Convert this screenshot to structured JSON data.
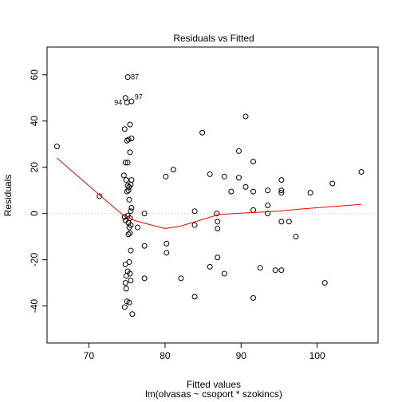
{
  "chart_data": {
    "type": "scatter",
    "title": "Residuals vs Fitted",
    "xlabel": "Fitted values",
    "subtitle": "lm(olvasas ~ csoport * szokincs)",
    "ylabel": "Residuals",
    "xlim": [
      64.5,
      108
    ],
    "ylim": [
      -56,
      72
    ],
    "x_ticks": [
      70,
      80,
      90,
      100
    ],
    "y_ticks": [
      -40,
      -20,
      0,
      20,
      40,
      60
    ],
    "grid": false,
    "zero_line": 0,
    "colors": {
      "points": "#000000",
      "smooth": "#ff0000",
      "zero_line": "#bebebe"
    },
    "points": [
      {
        "x": 65.8,
        "y": 29
      },
      {
        "x": 71.4,
        "y": 7.5
      },
      {
        "x": 74.6,
        "y": 16.5
      },
      {
        "x": 74.7,
        "y": 36.5
      },
      {
        "x": 74.7,
        "y": -1.5
      },
      {
        "x": 74.7,
        "y": -40.5
      },
      {
        "x": 74.8,
        "y": 50
      },
      {
        "x": 74.8,
        "y": 22
      },
      {
        "x": 74.8,
        "y": -3
      },
      {
        "x": 74.8,
        "y": -22
      },
      {
        "x": 74.8,
        "y": -30
      },
      {
        "x": 74.9,
        "y": 14.5
      },
      {
        "x": 74.9,
        "y": -27
      },
      {
        "x": 74.9,
        "y": -32.5
      },
      {
        "x": 75.0,
        "y": 48
      },
      {
        "x": 75.0,
        "y": 31.5
      },
      {
        "x": 75.0,
        "y": 9.5
      },
      {
        "x": 75.0,
        "y": -38
      },
      {
        "x": 75.1,
        "y": 59
      },
      {
        "x": 75.1,
        "y": 22
      },
      {
        "x": 75.1,
        "y": 12
      },
      {
        "x": 75.1,
        "y": -1
      },
      {
        "x": 75.1,
        "y": -25
      },
      {
        "x": 75.2,
        "y": 32
      },
      {
        "x": 75.2,
        "y": 10
      },
      {
        "x": 75.2,
        "y": -4
      },
      {
        "x": 75.2,
        "y": -9
      },
      {
        "x": 75.3,
        "y": 11.5
      },
      {
        "x": 75.3,
        "y": 6
      },
      {
        "x": 75.3,
        "y": -6
      },
      {
        "x": 75.3,
        "y": -21
      },
      {
        "x": 75.3,
        "y": -38.5
      },
      {
        "x": 75.4,
        "y": 38.5
      },
      {
        "x": 75.4,
        "y": 26.5
      },
      {
        "x": 75.4,
        "y": -2
      },
      {
        "x": 75.4,
        "y": -8.5
      },
      {
        "x": 75.4,
        "y": -26
      },
      {
        "x": 75.5,
        "y": 12.5
      },
      {
        "x": 75.5,
        "y": 1
      },
      {
        "x": 75.5,
        "y": -5
      },
      {
        "x": 75.5,
        "y": -16
      },
      {
        "x": 75.5,
        "y": -29
      },
      {
        "x": 75.6,
        "y": 48.5
      },
      {
        "x": 75.6,
        "y": 32.5
      },
      {
        "x": 75.6,
        "y": 14.5
      },
      {
        "x": 75.6,
        "y": 2.5
      },
      {
        "x": 75.7,
        "y": -43.5
      },
      {
        "x": 76.4,
        "y": -6
      },
      {
        "x": 77.3,
        "y": 0
      },
      {
        "x": 77.3,
        "y": -14
      },
      {
        "x": 77.3,
        "y": -28
      },
      {
        "x": 80.1,
        "y": 16
      },
      {
        "x": 80.2,
        "y": -13
      },
      {
        "x": 80.2,
        "y": -17
      },
      {
        "x": 81.1,
        "y": 19
      },
      {
        "x": 82.1,
        "y": -28
      },
      {
        "x": 83.9,
        "y": 1
      },
      {
        "x": 83.9,
        "y": -5
      },
      {
        "x": 83.9,
        "y": -36
      },
      {
        "x": 84.9,
        "y": 35
      },
      {
        "x": 85.9,
        "y": 17
      },
      {
        "x": 85.9,
        "y": -23
      },
      {
        "x": 86.8,
        "y": 0
      },
      {
        "x": 86.9,
        "y": -3.5
      },
      {
        "x": 86.9,
        "y": -6.5
      },
      {
        "x": 86.9,
        "y": -19
      },
      {
        "x": 87.8,
        "y": 16
      },
      {
        "x": 87.8,
        "y": -26
      },
      {
        "x": 88.7,
        "y": 9.5
      },
      {
        "x": 89.7,
        "y": 27
      },
      {
        "x": 89.7,
        "y": 15.5
      },
      {
        "x": 90.6,
        "y": 42
      },
      {
        "x": 90.6,
        "y": 11.5
      },
      {
        "x": 91.6,
        "y": 22.5
      },
      {
        "x": 91.6,
        "y": 9.5
      },
      {
        "x": 91.6,
        "y": 1.5
      },
      {
        "x": 91.6,
        "y": -36.5
      },
      {
        "x": 92.5,
        "y": -23.5
      },
      {
        "x": 93.5,
        "y": 10
      },
      {
        "x": 93.5,
        "y": 3.5
      },
      {
        "x": 93.5,
        "y": 0
      },
      {
        "x": 94.5,
        "y": -24.5
      },
      {
        "x": 95.3,
        "y": 14.5
      },
      {
        "x": 95.3,
        "y": 10
      },
      {
        "x": 95.3,
        "y": 9
      },
      {
        "x": 95.3,
        "y": -3.5
      },
      {
        "x": 95.3,
        "y": -24.5
      },
      {
        "x": 96.3,
        "y": -3.5
      },
      {
        "x": 97.2,
        "y": -10
      },
      {
        "x": 99.1,
        "y": 9
      },
      {
        "x": 101.0,
        "y": -30
      },
      {
        "x": 102.0,
        "y": 13
      },
      {
        "x": 105.8,
        "y": 18
      }
    ],
    "point_labels": [
      {
        "text": "87",
        "x": 75.1,
        "y": 59
      },
      {
        "text": "97",
        "x": 75.6,
        "y": 50.5
      },
      {
        "text": "94",
        "x": 74.8,
        "y": 48
      }
    ],
    "smooth_line": [
      {
        "x": 65.8,
        "y": 24
      },
      {
        "x": 71.4,
        "y": 8
      },
      {
        "x": 74.6,
        "y": -1
      },
      {
        "x": 76.0,
        "y": -3
      },
      {
        "x": 78.0,
        "y": -4.8
      },
      {
        "x": 80.0,
        "y": -6.5
      },
      {
        "x": 82.0,
        "y": -5.5
      },
      {
        "x": 84.0,
        "y": -3.5
      },
      {
        "x": 85.5,
        "y": -2
      },
      {
        "x": 87.0,
        "y": -0.5
      },
      {
        "x": 89.0,
        "y": 0
      },
      {
        "x": 92.0,
        "y": 0.5
      },
      {
        "x": 95.0,
        "y": 1
      },
      {
        "x": 98.0,
        "y": 2
      },
      {
        "x": 102.0,
        "y": 3
      },
      {
        "x": 105.8,
        "y": 4
      }
    ]
  }
}
